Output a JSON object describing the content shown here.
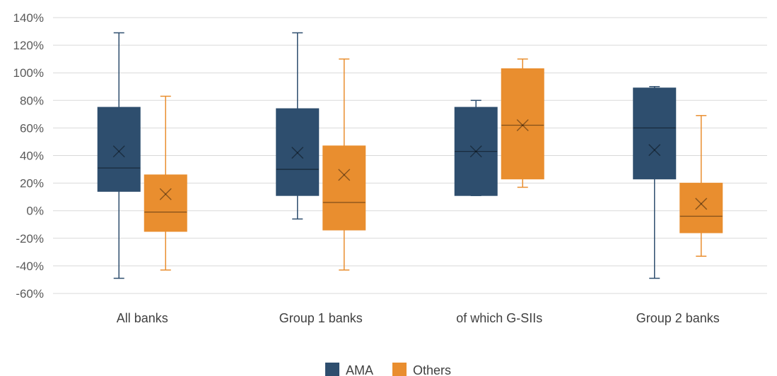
{
  "chart_data": {
    "type": "boxplot",
    "ylim": [
      -60,
      140
    ],
    "y_ticks": [
      -60,
      -40,
      -20,
      0,
      20,
      40,
      60,
      80,
      100,
      120,
      140
    ],
    "y_tick_labels": [
      "-60%",
      "-40%",
      "-20%",
      "0%",
      "20%",
      "40%",
      "60%",
      "80%",
      "100%",
      "120%",
      "140%"
    ],
    "grid": true,
    "legend_position": "bottom",
    "categories": [
      "All banks",
      "Group 1 banks",
      "of which G-SIIs",
      "Group 2 banks"
    ],
    "series": [
      {
        "name": "AMA",
        "color": "#2e4e6e",
        "boxes": [
          {
            "min": -49,
            "q1": 14,
            "median": 31,
            "q3": 75,
            "max": 129,
            "mean": 43
          },
          {
            "min": -6,
            "q1": 11,
            "median": 30,
            "q3": 74,
            "max": 129,
            "mean": 42
          },
          {
            "min": 11,
            "q1": 11,
            "median": 43,
            "q3": 75,
            "max": 80,
            "mean": 43
          },
          {
            "min": -49,
            "q1": 23,
            "median": 60,
            "q3": 89,
            "max": 90,
            "mean": 44
          }
        ]
      },
      {
        "name": "Others",
        "color": "#e98e2f",
        "boxes": [
          {
            "min": -43,
            "q1": -15,
            "median": -1,
            "q3": 26,
            "max": 83,
            "mean": 12
          },
          {
            "min": -43,
            "q1": -14,
            "median": 6,
            "q3": 47,
            "max": 110,
            "mean": 26
          },
          {
            "min": 17,
            "q1": 23,
            "median": 62,
            "q3": 103,
            "max": 110,
            "mean": 62
          },
          {
            "min": -33,
            "q1": -16,
            "median": -4,
            "q3": 20,
            "max": 69,
            "mean": 5
          }
        ]
      }
    ]
  }
}
